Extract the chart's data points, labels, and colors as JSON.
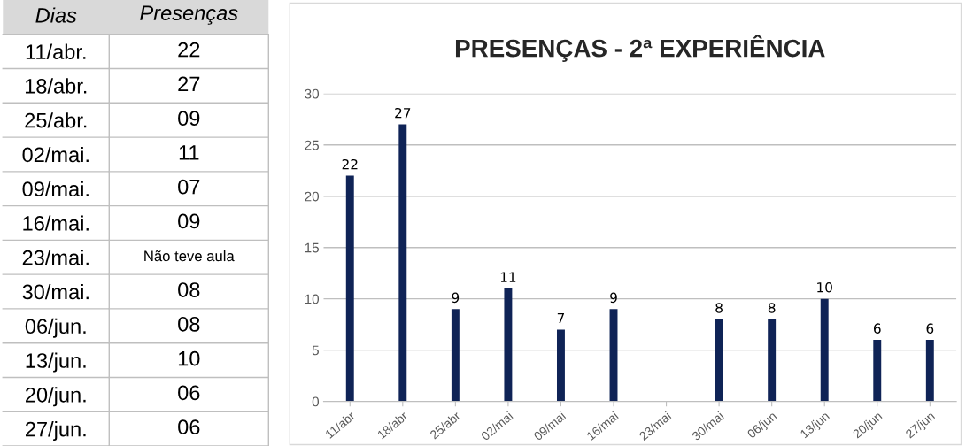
{
  "chart_data": [
    {
      "type": "heatmap",
      "ylabel": "Dias",
      "categories": [
        "Presenças"
      ],
      "y_categories": [
        "11/abr.",
        "18/abr.",
        "25/abr.",
        "02/mai.",
        "09/mai.",
        "16/mai.",
        "23/mai.",
        "30/mai.",
        "06/jun.",
        "13/jun.",
        "20/jun.",
        "27/jun."
      ],
      "cells": [
        [
          null
        ],
        [
          null
        ],
        [
          null
        ],
        [
          null
        ],
        [
          null
        ],
        [
          null
        ],
        [
          null
        ],
        [
          null
        ],
        [
          null
        ],
        [
          null
        ],
        [
          null
        ],
        [
          null
        ]
      ],
      "cell_labels": [
        [
          "22"
        ],
        [
          "27"
        ],
        [
          "09"
        ],
        [
          "11"
        ],
        [
          "07"
        ],
        [
          "09"
        ],
        [
          "Não teve aula"
        ],
        [
          "08"
        ],
        [
          "08"
        ],
        [
          "10"
        ],
        [
          "06"
        ],
        [
          "06"
        ]
      ]
    },
    {
      "type": "bar",
      "title": "PRESENÇAS - 2ª EXPERIÊNCIA",
      "categories": [
        "11/abr",
        "18/abr",
        "25/abr",
        "02/mai",
        "09/mai",
        "16/mai",
        "23/mai",
        "30/mai",
        "06/jun",
        "13/jun",
        "20/jun",
        "27/jun"
      ],
      "values": [
        22,
        27,
        9,
        11,
        7,
        9,
        null,
        8,
        8,
        10,
        6,
        6
      ],
      "color": "#0f2356",
      "ylim": [
        0,
        30
      ],
      "yticks": [
        0,
        5,
        10,
        15,
        20,
        25,
        30
      ],
      "grid": "y",
      "data_labels": true
    }
  ]
}
